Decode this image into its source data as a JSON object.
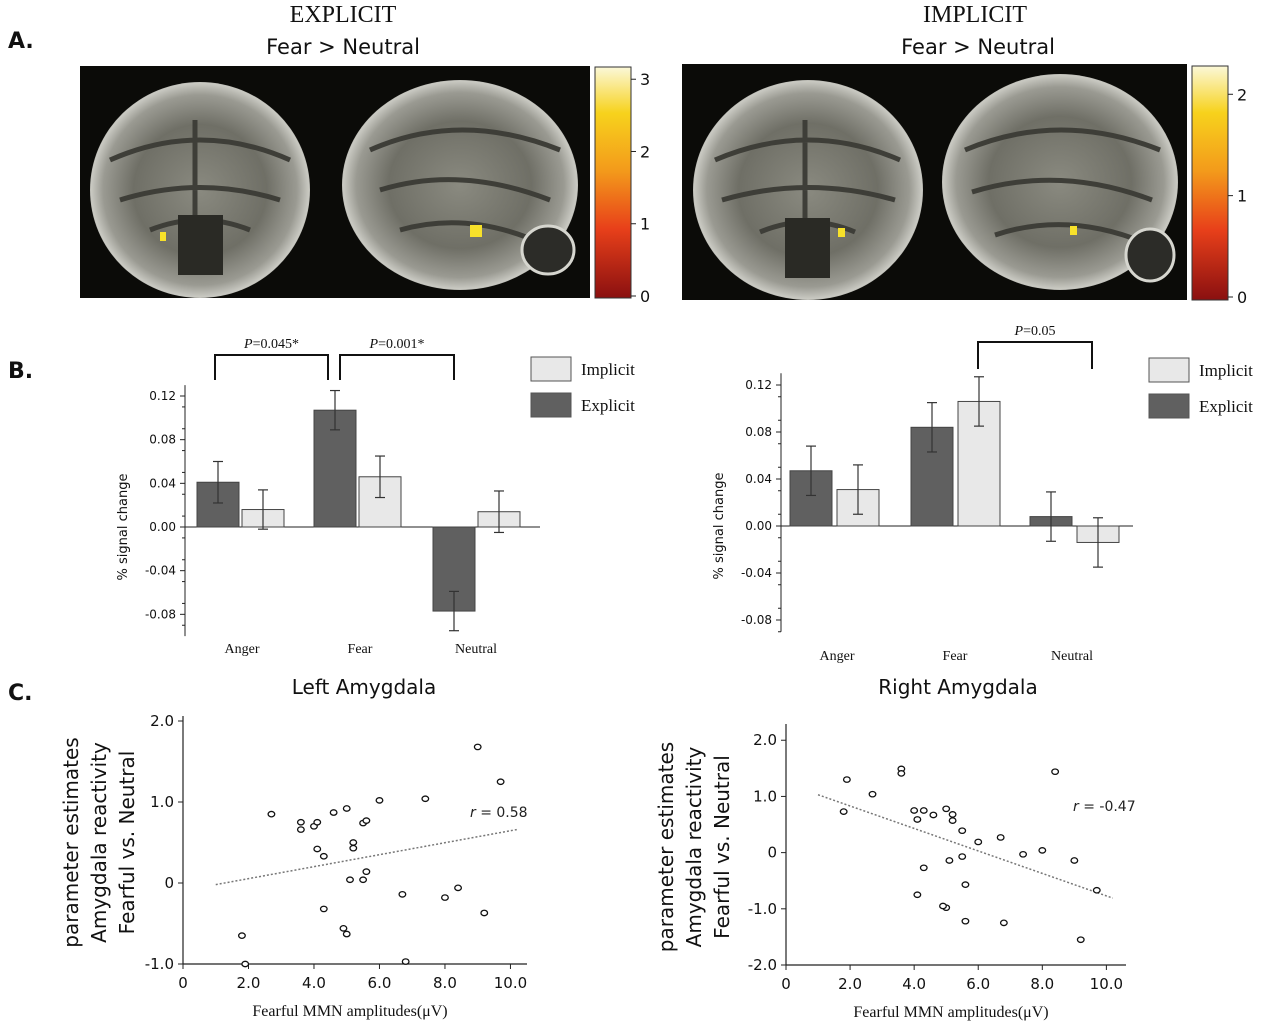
{
  "panel_labels": {
    "a": "A.",
    "b": "B.",
    "c": "C."
  },
  "panel_a": {
    "explicit": {
      "heading": "EXPLICIT",
      "contrast": "Fear > Neutral",
      "colorbar_ticks": [
        "3",
        "2",
        "1",
        "0"
      ],
      "colorbar_max": 3.1
    },
    "implicit": {
      "heading": "IMPLICIT",
      "contrast": "Fear > Neutral",
      "colorbar_ticks": [
        "2",
        "1",
        "0"
      ],
      "colorbar_max": 2.2
    },
    "colors": {
      "brain_bg": "#0b0b08",
      "hot_low": "#8a1010",
      "hot_mid": "#e8401a",
      "hot_high": "#f7d21c",
      "hot_top": "#fbf8d8"
    }
  },
  "chart_data": [
    {
      "type": "bar",
      "panel": "B-left",
      "ylabel": "% signal change",
      "categories": [
        "Anger",
        "Fear",
        "Neutral"
      ],
      "series": [
        {
          "name": "Explicit",
          "color": "#606060",
          "values": [
            0.041,
            0.107,
            -0.077
          ],
          "errors": [
            0.019,
            0.018,
            0.018
          ]
        },
        {
          "name": "Implicit",
          "color": "#e8e8e8",
          "values": [
            0.016,
            0.046,
            0.014
          ],
          "errors": [
            0.018,
            0.019,
            0.019
          ]
        }
      ],
      "yticks": [
        "0.12",
        "0.08",
        "0.04",
        "0.00",
        "-0.04",
        "-0.08"
      ],
      "ylim": [
        -0.1,
        0.13
      ],
      "legend": [
        "Implicit",
        "Explicit"
      ],
      "legend_position": "top-right",
      "annotations": [
        {
          "prefix": "P",
          "text": "=0.045*",
          "from": "Anger",
          "to": "Fear"
        },
        {
          "prefix": "P",
          "text": "=0.001*",
          "from": "Fear",
          "to": "Neutral"
        }
      ]
    },
    {
      "type": "bar",
      "panel": "B-right",
      "ylabel": "% signal change",
      "categories": [
        "Anger",
        "Fear",
        "Neutral"
      ],
      "series": [
        {
          "name": "Explicit",
          "color": "#606060",
          "values": [
            0.047,
            0.084,
            0.008
          ],
          "errors": [
            0.021,
            0.021,
            0.021
          ]
        },
        {
          "name": "Implicit",
          "color": "#e8e8e8",
          "values": [
            0.031,
            0.106,
            -0.014
          ],
          "errors": [
            0.021,
            0.021,
            0.021
          ]
        }
      ],
      "yticks": [
        "0.12",
        "0.08",
        "0.04",
        "0.00",
        "-0.04",
        "-0.08"
      ],
      "ylim": [
        -0.09,
        0.13
      ],
      "legend": [
        "Implicit",
        "Explicit"
      ],
      "legend_position": "top-right",
      "annotations": [
        {
          "prefix": "P",
          "text": "=0.05",
          "from": "Fear",
          "to": "Neutral"
        }
      ]
    },
    {
      "type": "scatter",
      "panel": "C-left",
      "title": "Left Amygdala",
      "xlabel": "Fearful MMN amplitudes(μV)",
      "ylabel_lines": [
        "parameter estimates",
        "Amygdala reactivity",
        "Fearful  vs.  Neutral"
      ],
      "xticks": [
        "0",
        "2.0",
        "4.0",
        "6.0",
        "8.0",
        "10.0"
      ],
      "yticks": [
        "2.0",
        "1.0",
        "0",
        "-1.0"
      ],
      "xlim": [
        0,
        10.2
      ],
      "ylim": [
        -1.0,
        2.0
      ],
      "annotation": {
        "prefix": "r",
        "text": " = 0.58"
      },
      "trend": {
        "x": [
          1.0,
          10.2
        ],
        "y": [
          -0.02,
          0.66
        ]
      },
      "points": [
        [
          1.8,
          -0.65
        ],
        [
          1.9,
          -1.0
        ],
        [
          2.7,
          0.85
        ],
        [
          3.6,
          0.75
        ],
        [
          3.6,
          0.66
        ],
        [
          4.0,
          0.7
        ],
        [
          4.1,
          0.75
        ],
        [
          4.1,
          0.42
        ],
        [
          4.3,
          0.33
        ],
        [
          4.3,
          -0.32
        ],
        [
          4.6,
          0.87
        ],
        [
          5.0,
          0.92
        ],
        [
          5.0,
          -0.63
        ],
        [
          5.1,
          0.04
        ],
        [
          5.2,
          0.43
        ],
        [
          5.2,
          0.5
        ],
        [
          5.5,
          0.74
        ],
        [
          5.5,
          0.04
        ],
        [
          5.6,
          0.77
        ],
        [
          5.6,
          0.14
        ],
        [
          6.0,
          1.02
        ],
        [
          6.7,
          -0.14
        ],
        [
          6.8,
          -0.97
        ],
        [
          7.4,
          1.04
        ],
        [
          8.0,
          -0.18
        ],
        [
          8.4,
          -0.06
        ],
        [
          9.0,
          1.68
        ],
        [
          9.2,
          -0.37
        ],
        [
          9.7,
          1.25
        ],
        [
          4.9,
          -0.56
        ]
      ]
    },
    {
      "type": "scatter",
      "panel": "C-right",
      "title": "Right Amygdala",
      "xlabel": "Fearful MMN amplitudes(μV)",
      "ylabel_lines": [
        "parameter estimates",
        "Amygdala reactivity",
        "Fearful  vs.  Neutral"
      ],
      "xticks": [
        "0",
        "2.0",
        "4.0",
        "6.0",
        "8.0",
        "10.0"
      ],
      "yticks": [
        "2.0",
        "1.0",
        "0",
        "-1.0",
        "-2.0"
      ],
      "xlim": [
        0,
        10.3
      ],
      "ylim": [
        -2.0,
        2.2
      ],
      "annotation": {
        "prefix": "r",
        "text": " = -0.47"
      },
      "trend": {
        "x": [
          1.0,
          10.2
        ],
        "y": [
          1.03,
          -0.81
        ]
      },
      "points": [
        [
          1.8,
          0.73
        ],
        [
          1.9,
          1.3
        ],
        [
          2.7,
          1.04
        ],
        [
          3.6,
          1.49
        ],
        [
          3.6,
          1.41
        ],
        [
          4.0,
          0.75
        ],
        [
          4.1,
          0.59
        ],
        [
          4.1,
          -0.75
        ],
        [
          4.3,
          0.75
        ],
        [
          4.3,
          -0.27
        ],
        [
          4.6,
          0.67
        ],
        [
          5.0,
          0.78
        ],
        [
          5.0,
          -0.98
        ],
        [
          5.1,
          -0.14
        ],
        [
          5.2,
          0.68
        ],
        [
          5.2,
          0.57
        ],
        [
          5.5,
          0.39
        ],
        [
          5.5,
          -0.07
        ],
        [
          5.6,
          -1.22
        ],
        [
          5.6,
          -0.57
        ],
        [
          6.0,
          0.19
        ],
        [
          6.7,
          0.27
        ],
        [
          6.8,
          -1.25
        ],
        [
          7.4,
          -0.03
        ],
        [
          8.0,
          0.04
        ],
        [
          8.4,
          1.44
        ],
        [
          9.0,
          -0.14
        ],
        [
          9.2,
          -1.55
        ],
        [
          9.7,
          -0.67
        ],
        [
          4.9,
          -0.95
        ]
      ]
    }
  ]
}
